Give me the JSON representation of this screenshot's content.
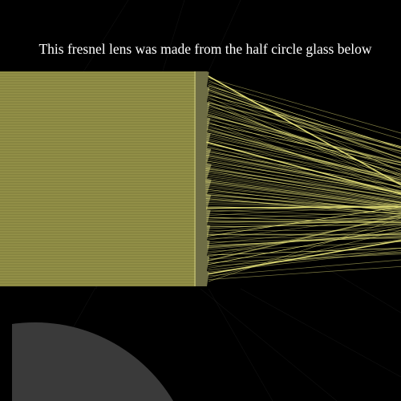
{
  "caption": "This fresnel lens was made from the half circle glass below",
  "colors": {
    "background": "#000000",
    "beam": "#e8e47a",
    "beam_body": "#8f8d45",
    "lens": "#c9c77e",
    "glass": "#3a3a3a",
    "caption_text": "#ffffff",
    "faint_ray": "#8a8a8a"
  },
  "elements": {
    "light_beam": "parallel-light-beam",
    "fresnel_lens": "fresnel-lens",
    "focused_rays": "converging-light-rays",
    "half_circle_glass": "half-circle-glass"
  }
}
